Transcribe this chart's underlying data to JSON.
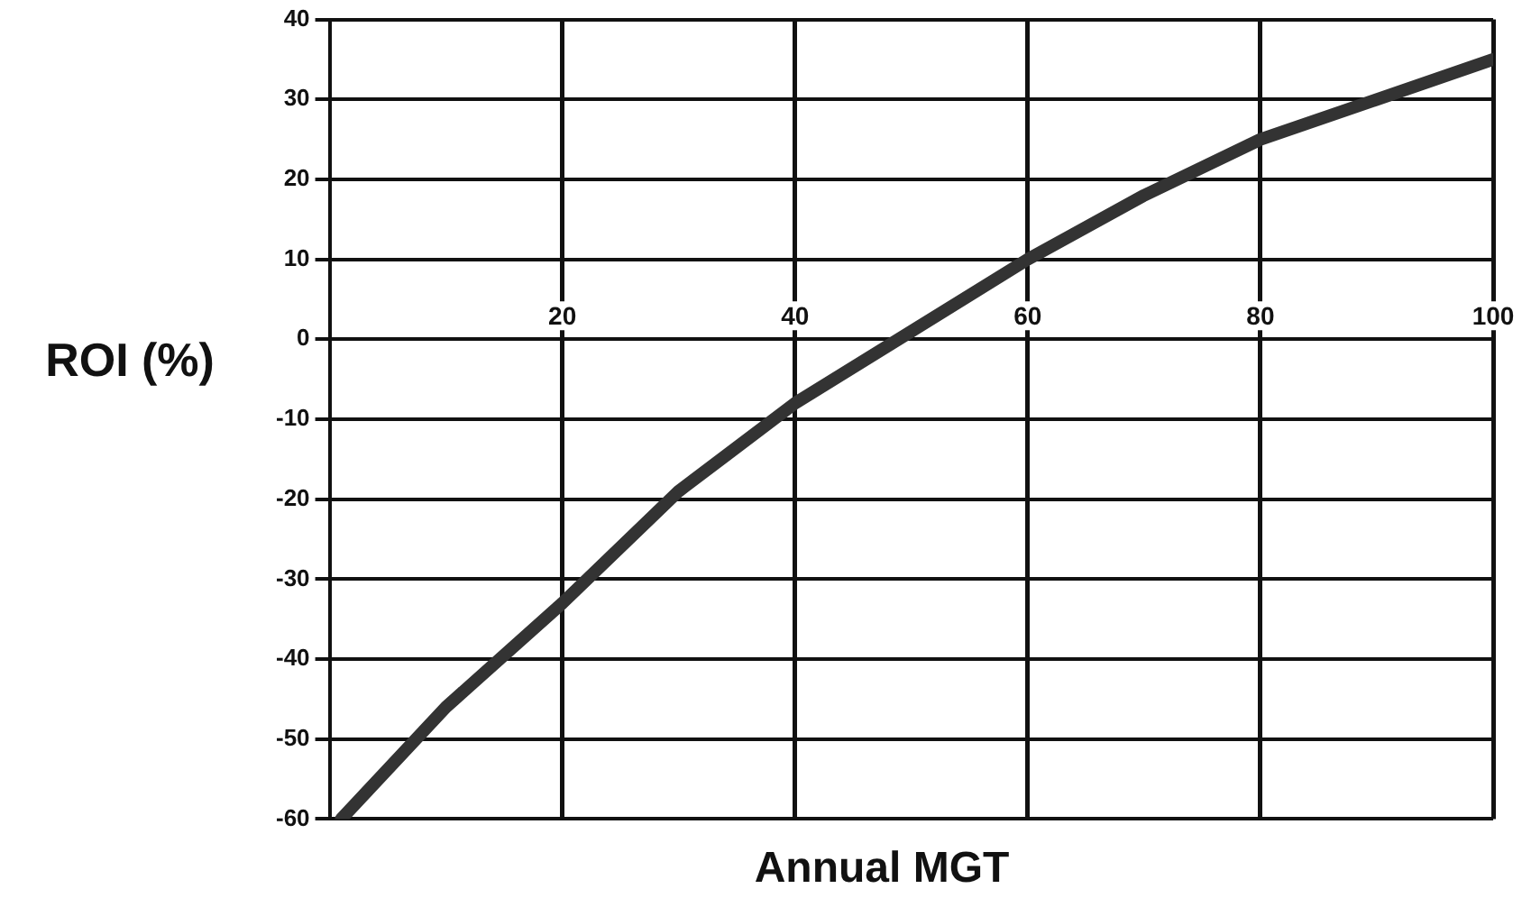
{
  "chart_data": {
    "type": "line",
    "xlabel": "Annual MGT",
    "ylabel": "ROI (%)",
    "x": [
      1,
      10,
      20,
      30,
      40,
      50,
      60,
      70,
      80,
      90,
      100
    ],
    "series": [
      {
        "color": "#333333",
        "values": [
          -60,
          -46,
          -33,
          -19,
          -8,
          1,
          10,
          18,
          25,
          30,
          35
        ]
      }
    ],
    "xlim": [
      0,
      100
    ],
    "xticks": [
      20,
      40,
      60,
      80,
      100
    ],
    "ylim": [
      -60,
      40
    ],
    "yticks": [
      -60,
      -50,
      -40,
      -30,
      -20,
      -10,
      0,
      10,
      20,
      30,
      40
    ],
    "grid": true,
    "legend": false,
    "marker": "none",
    "line_style": "solid"
  }
}
